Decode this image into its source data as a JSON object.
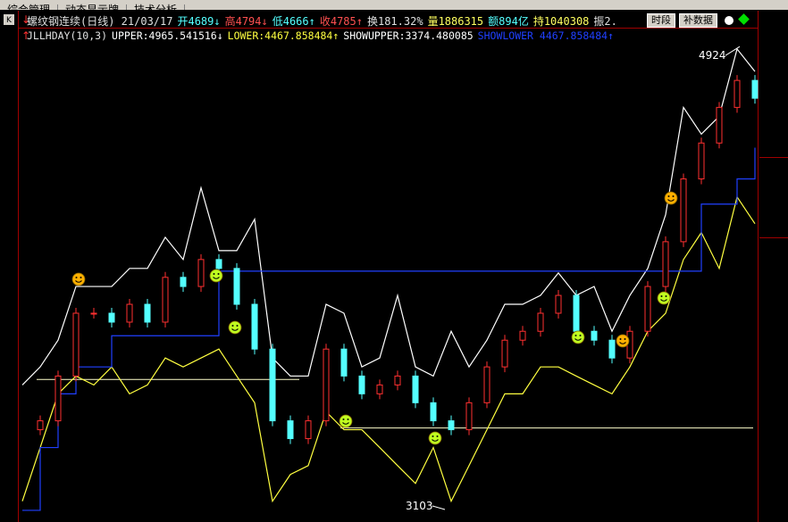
{
  "tabs": [
    "综合管理",
    "动态显示牌",
    "技术分析"
  ],
  "header": {
    "items": [
      {
        "text": "螺纹钢连续(日线) 21/03/17",
        "color": "#e0e0e0"
      },
      {
        "text": "开4689↓",
        "color": "#54ffff"
      },
      {
        "text": "高4794↓",
        "color": "#ff5050"
      },
      {
        "text": "低4666↑",
        "color": "#54ffff"
      },
      {
        "text": "收4785↑",
        "color": "#ff5050"
      },
      {
        "text": "换181.32%",
        "color": "#e0e0e0"
      },
      {
        "text": "量1886315",
        "color": "#ffff60"
      },
      {
        "text": "额894亿",
        "color": "#54ffff"
      },
      {
        "text": "持1040308",
        "color": "#ffff60"
      },
      {
        "text": "振2.",
        "color": "#e0e0e0"
      }
    ],
    "buttons": [
      "时段",
      "补数据"
    ]
  },
  "indicator": {
    "items": [
      {
        "text": "JLLHDAY(10,3)",
        "color": "#e0e0e0"
      },
      {
        "text": "UPPER:4965.541516↓",
        "color": "#ffffff"
      },
      {
        "text": "LOWER:4467.858484↑",
        "color": "#ffff40"
      },
      {
        "text": "SHOWUPPER:3374.480085",
        "color": "#ffffff"
      },
      {
        "text": "SHOWLOWER 4467.858484↑",
        "color": "#2040ff"
      }
    ]
  },
  "chart_data": {
    "type": "stock",
    "ylim": [
      3056,
      4975
    ],
    "series": [
      {
        "name": "UPPER",
        "color": "#ffffff",
        "values": [
          3592,
          3665,
          3773,
          3990,
          3990,
          3990,
          4063,
          4063,
          4189,
          4099,
          4389,
          4135,
          4135,
          4262,
          3701,
          3628,
          3628,
          3918,
          3882,
          3665,
          3701,
          3954,
          3665,
          3628,
          3809,
          3665,
          3773,
          3918,
          3918,
          3954,
          4045,
          3954,
          3990,
          3809,
          3954,
          4063,
          4280,
          4714,
          4606,
          4678,
          4950,
          4859
        ]
      },
      {
        "name": "LOWER",
        "color": "#ffff40",
        "values": [
          3122,
          3339,
          3556,
          3628,
          3592,
          3665,
          3556,
          3592,
          3701,
          3665,
          3701,
          3737,
          3628,
          3520,
          3122,
          3230,
          3266,
          3484,
          3411,
          3411,
          3339,
          3266,
          3194,
          3339,
          3122,
          3266,
          3411,
          3556,
          3556,
          3665,
          3665,
          3628,
          3592,
          3556,
          3665,
          3809,
          3882,
          4099,
          4208,
          4063,
          4352,
          4244
        ]
      },
      {
        "name": "SHOWLOWER",
        "color": "#2040ff",
        "values": [
          3085,
          3339,
          3556,
          3665,
          3665,
          3791,
          3791,
          3791,
          3791,
          3791,
          3791,
          4052,
          4052,
          4052,
          4052,
          4052,
          4052,
          4052,
          4052,
          4052,
          4052,
          4052,
          4052,
          4052,
          4052,
          4052,
          4052,
          4052,
          4052,
          4052,
          4052,
          4052,
          4052,
          4052,
          4052,
          4052,
          4052,
          4052,
          4323,
          4323,
          4425,
          4551
        ]
      }
    ],
    "close": {
      "up_color": "#ff3030",
      "down_color": "#54ffff",
      "values": [
        3411,
        3447,
        3628,
        3882,
        3882,
        3846,
        3918,
        3846,
        4027,
        3990,
        4099,
        4063,
        3918,
        3737,
        3447,
        3375,
        3447,
        3737,
        3628,
        3556,
        3592,
        3628,
        3520,
        3447,
        3411,
        3520,
        3665,
        3773,
        3809,
        3882,
        3954,
        3809,
        3773,
        3701,
        3809,
        3990,
        4171,
        4425,
        4570,
        4714,
        4823,
        4751
      ]
    },
    "levels": [
      {
        "value": 3614,
        "color": "#ffffcc",
        "from": 0.8,
        "to": 15.5
      },
      {
        "value": 3418,
        "color": "#ffffcc",
        "from": 17.8,
        "to": 40.9
      }
    ],
    "high_label": 4924,
    "low_label": 3103
  }
}
